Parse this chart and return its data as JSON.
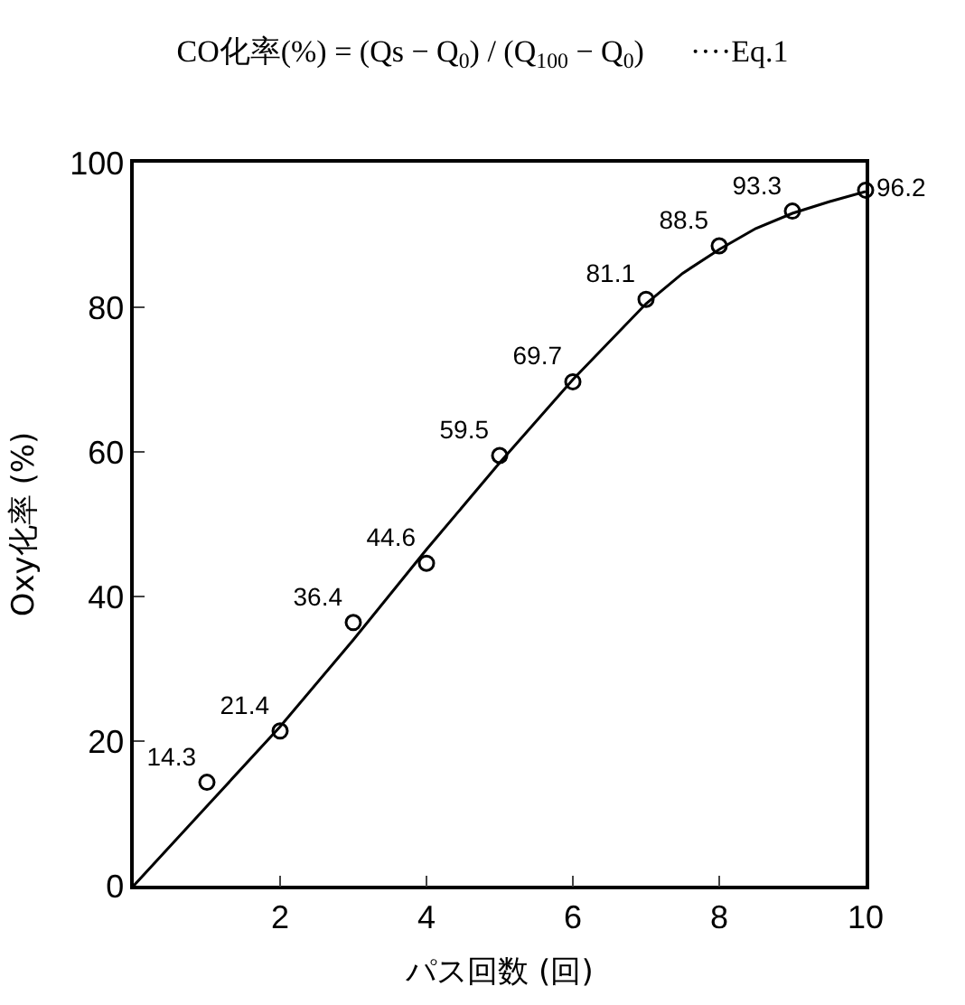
{
  "chart_data": {
    "type": "scatter",
    "title": "CO化率(%) = (Qs − Q$_{0}$) / (Q$_{100}$ − Q$_{0}$)      ····Eq.1",
    "xlabel": "パス回数 (回)",
    "ylabel": "Oxy化率 (%)",
    "x": [
      1,
      2,
      3,
      4,
      5,
      6,
      7,
      8,
      9,
      10
    ],
    "series": [
      {
        "color": "#000000",
        "marker": "circle",
        "data_labels": true,
        "values": [
          14.3,
          21.4,
          36.4,
          44.6,
          59.5,
          69.7,
          81.1,
          88.5,
          93.3,
          96.2
        ]
      },
      {
        "type": "line",
        "color": "#000000",
        "marker": "none",
        "x": [
          0,
          1,
          2,
          3,
          4,
          5,
          6,
          7,
          7.5,
          8,
          8.5,
          9,
          9.5,
          10
        ],
        "values": [
          0,
          11,
          22,
          34,
          46.5,
          58.5,
          70,
          80.5,
          84.7,
          88,
          90.9,
          93,
          94.6,
          96
        ]
      }
    ],
    "xlim": [
      0,
      10
    ],
    "xticks": [
      2,
      4,
      6,
      8,
      10
    ],
    "ylim": [
      0,
      100
    ],
    "yticks": [
      0,
      20,
      40,
      60,
      80,
      100
    ]
  }
}
